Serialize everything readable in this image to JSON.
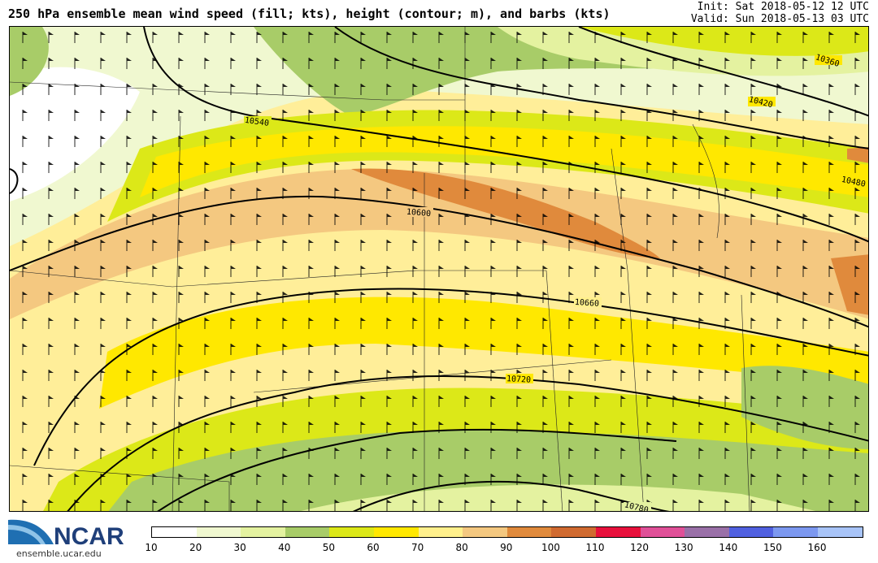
{
  "header": {
    "title": "250 hPa ensemble mean wind speed (fill; kts), height (contour; m), and barbs (kts)",
    "init": "Init: Sat 2018-05-12 12 UTC",
    "valid": "Valid: Sun 2018-05-13 03 UTC"
  },
  "contours": {
    "labels": [
      "10360",
      "10420",
      "10480",
      "10540",
      "10600",
      "10660",
      "10720",
      "10780"
    ]
  },
  "legend": {
    "ticks": [
      "10",
      "20",
      "30",
      "40",
      "50",
      "60",
      "70",
      "80",
      "90",
      "100",
      "110",
      "120",
      "130",
      "140",
      "150",
      "160"
    ],
    "colors": [
      "#ffffff",
      "#f0f8d0",
      "#e4f2a0",
      "#a8cc68",
      "#dce818",
      "#ffe800",
      "#fff08c",
      "#f4c880",
      "#e08a3c",
      "#d06a30",
      "#e8103c",
      "#e05098",
      "#9a70a8",
      "#5060e0",
      "#7c98f0",
      "#a8c4f8"
    ]
  },
  "logo": {
    "text": "NCAR",
    "url": "ensemble.ucar.edu"
  }
}
